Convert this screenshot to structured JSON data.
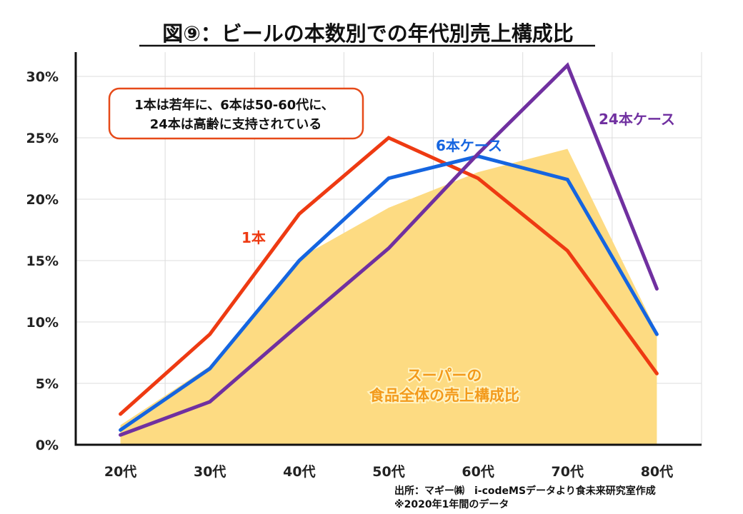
{
  "chart_data": {
    "type": "line",
    "title": "図⑨：ビールの本数別での年代別売上構成比",
    "categories": [
      "20代",
      "30代",
      "40代",
      "50代",
      "60代",
      "70代",
      "80代"
    ],
    "ylim": [
      0,
      30
    ],
    "yticks": [
      0,
      5,
      10,
      15,
      20,
      25,
      30
    ],
    "ytick_labels": [
      "0%",
      "5%",
      "10%",
      "15%",
      "20%",
      "25%",
      "30%"
    ],
    "xlabel": "",
    "ylabel": "",
    "grid": true,
    "series": [
      {
        "name": "スーパーの食品全体の売上構成比",
        "kind": "area",
        "color": "#FDDB82",
        "values": [
          1.6,
          6.4,
          15.2,
          19.3,
          22.2,
          24.1,
          9.2
        ]
      },
      {
        "name": "1本",
        "kind": "line",
        "color": "#EE3A12",
        "values": [
          2.5,
          9.0,
          18.8,
          25.0,
          21.7,
          15.8,
          5.8
        ]
      },
      {
        "name": "6本ケース",
        "kind": "line",
        "color": "#1565E0",
        "values": [
          1.2,
          6.2,
          15.0,
          21.7,
          23.5,
          21.6,
          9.0
        ]
      },
      {
        "name": "24本ケース",
        "kind": "line",
        "color": "#7030A0",
        "values": [
          0.8,
          3.5,
          9.8,
          16.0,
          23.7,
          30.9,
          12.7
        ]
      }
    ],
    "labels": {
      "one": "1本",
      "six": "6本ケース",
      "twentyfour": "24本ケース",
      "area_line1": "スーパーの",
      "area_line2": "食品全体の売上構成比"
    },
    "annotation": {
      "line1": "1本は若年に、6本は50-60代に、",
      "line2": "24本は高齢に支持されている",
      "border_color": "#E64A19"
    },
    "source": {
      "line1": "出所：マギー㈱　i-codeMSデータより食未来研究室作成",
      "line2": "※2020年1年間のデータ"
    }
  }
}
